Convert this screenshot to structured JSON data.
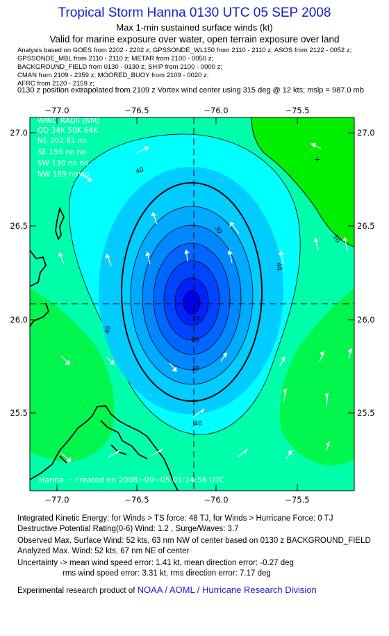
{
  "header": {
    "title": "Tropical Storm Hanna 0130 UTC 05 SEP 2008",
    "subtitle": "Max 1-min sustained surface winds (kt)",
    "valid_for": "Valid for marine exposure over water, open terrain exposure over land",
    "analysis_lines": [
      "Analysis based on  GOES from 2202 - 2202 z;  GPSSONDE_WL150 from 2110 - 2110 z;  ASOS from 2122 - 0052 z;",
      "GPSSONDE_MBL from 2110 - 2110 z;  METAR from 2100 - 0050 z;",
      "BACKGROUND_FIELD from 0130 - 0130 z;  SHIP from 2100 - 0000 z;",
      "CMAN from 2109 - 2359 z;  MOORED_BUOY from 2109 - 0020 z;",
      "AFRC from 2120 - 2159 z;"
    ],
    "position_note": "0130 z position extrapolated from 2109 z Vortex wind center using 315 deg @ 12 kts; mslp = 987.0 mb"
  },
  "map": {
    "lon_labels": [
      "−77.0",
      "−76.5",
      "−76.0",
      "−75.5"
    ],
    "lat_labels": [
      "27.0",
      "26.5",
      "26.0",
      "25.5"
    ],
    "center_lon": -76.13,
    "center_lat": 26.09,
    "contour_labels": [
      "40",
      "30",
      "40",
      "50",
      "40",
      "20",
      "30",
      "40",
      "10"
    ],
    "wind_radii": {
      "title": "WIND RADII (NM)",
      "header": "QD  34K  50K  64K",
      "rows": [
        "NE  202   81    no",
        "SE  156   no    no",
        "SW  130   no    no",
        "NW  189   no    no"
      ]
    },
    "credit": "Hanna − created on 2008−09−05 01:14:56 UTC",
    "colors": {
      "green": "#00ee00",
      "teal": "#00ffaa",
      "cyan": "#00ffff",
      "blue_steps": [
        "#00ccff",
        "#00aaff",
        "#0088ff",
        "#0066ff",
        "#0044ff",
        "#0022ff",
        "#0000ee"
      ]
    }
  },
  "footer": {
    "ike": "Integrated Kinetic Energy:  for Winds > TS force: 48 TJ,  for Winds > Hurricane Force: 0 TJ",
    "dpr": "Destructive Potential Rating(0-6)   Wind: 1.2 , Surge/Waves: 3.7",
    "observed": "Observed Max. Surface Wind: 52 kts, 63 nm NW of center based on 0130 z BACKGROUND_FIELD",
    "analyzed": "Analyzed Max. Wind: 52 kts, 67 nm NE of center",
    "uncert1": "Uncertainty -> mean wind speed error: 1.41 kt,   mean direction error:  -0.27 deg",
    "uncert2": "rms wind speed error: 3.31 kt,   rms direction error: 7.17 deg",
    "research_prefix": "Experimental research product of",
    "research_link": "NOAA / AOML / Hurricane Research Division"
  }
}
